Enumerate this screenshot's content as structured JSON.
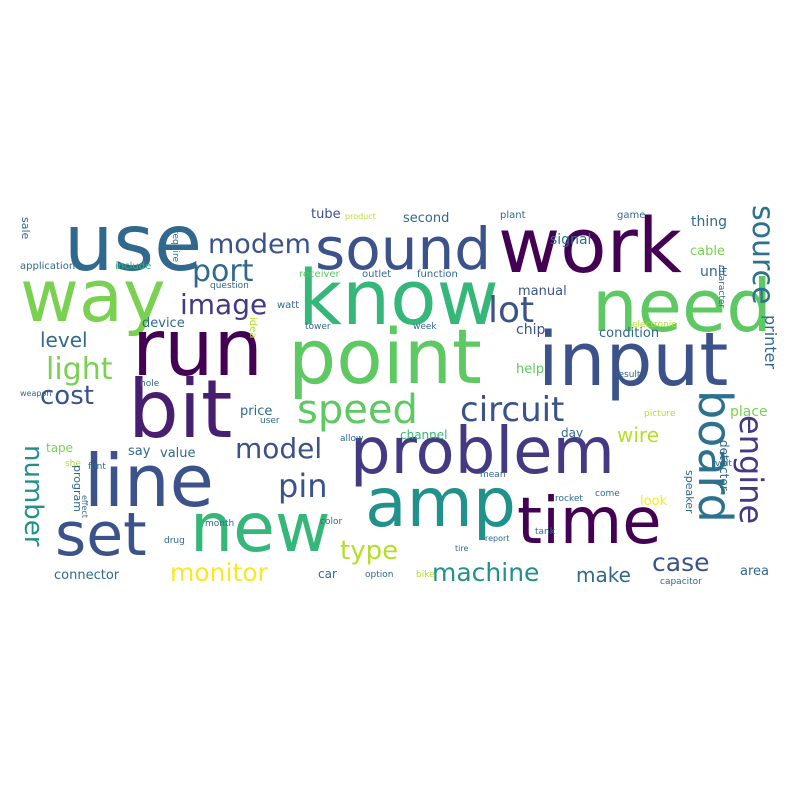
{
  "words": [
    {
      "text": "use",
      "color": "#31688e"
    },
    {
      "text": "way",
      "color": "#7ad151"
    },
    {
      "text": "sound",
      "color": "#3b528b"
    },
    {
      "text": "work",
      "color": "#440154"
    },
    {
      "text": "know",
      "color": "#35b779"
    },
    {
      "text": "need",
      "color": "#5ec962"
    },
    {
      "text": "run",
      "color": "#440154"
    },
    {
      "text": "point",
      "color": "#5ec962"
    },
    {
      "text": "input",
      "color": "#3b528b"
    },
    {
      "text": "bit",
      "color": "#481f70"
    },
    {
      "text": "problem",
      "color": "#443983"
    },
    {
      "text": "line",
      "color": "#3b528b"
    },
    {
      "text": "amp",
      "color": "#21918c"
    },
    {
      "text": "time",
      "color": "#440154"
    },
    {
      "text": "new",
      "color": "#35b779"
    },
    {
      "text": "set",
      "color": "#3b528b"
    },
    {
      "text": "speed",
      "color": "#5ec962"
    },
    {
      "text": "circuit",
      "color": "#3b528b"
    },
    {
      "text": "board",
      "color": "#2c728e"
    },
    {
      "text": "engine",
      "color": "#443983"
    },
    {
      "text": "source",
      "color": "#2c728e"
    },
    {
      "text": "modem",
      "color": "#3b528b"
    },
    {
      "text": "port",
      "color": "#31688e"
    },
    {
      "text": "image",
      "color": "#443983"
    },
    {
      "text": "lot",
      "color": "#3b528b"
    },
    {
      "text": "cost",
      "color": "#3b528b"
    },
    {
      "text": "light",
      "color": "#7ad151"
    },
    {
      "text": "level",
      "color": "#31688e"
    },
    {
      "text": "model",
      "color": "#3b528b"
    },
    {
      "text": "pin",
      "color": "#3b528b"
    },
    {
      "text": "type",
      "color": "#b5de2b"
    },
    {
      "text": "machine",
      "color": "#21918c"
    },
    {
      "text": "monitor",
      "color": "#fde725"
    },
    {
      "text": "case",
      "color": "#3b528b"
    },
    {
      "text": "make",
      "color": "#31688e"
    },
    {
      "text": "number",
      "color": "#21918c"
    },
    {
      "text": "wire",
      "color": "#b5de2b"
    },
    {
      "text": "printer",
      "color": "#31688e"
    },
    {
      "text": "tube",
      "color": "#3b528b"
    },
    {
      "text": "second",
      "color": "#31688e"
    },
    {
      "text": "signal",
      "color": "#2c728e"
    },
    {
      "text": "thing",
      "color": "#31688e"
    },
    {
      "text": "cable",
      "color": "#7ad151"
    },
    {
      "text": "unit",
      "color": "#31688e"
    },
    {
      "text": "manual",
      "color": "#3b528b"
    },
    {
      "text": "chip",
      "color": "#3b528b"
    },
    {
      "text": "help",
      "color": "#5ec962"
    },
    {
      "text": "connector",
      "color": "#31688e"
    },
    {
      "text": "area",
      "color": "#31688e"
    },
    {
      "text": "place",
      "color": "#7ad151"
    },
    {
      "text": "detector",
      "color": "#31688e"
    },
    {
      "text": "speaker",
      "color": "#31688e"
    },
    {
      "text": "condition",
      "color": "#31688e"
    },
    {
      "text": "device",
      "color": "#31688e"
    },
    {
      "text": "price",
      "color": "#31688e"
    },
    {
      "text": "value",
      "color": "#31688e"
    },
    {
      "text": "say",
      "color": "#31688e"
    },
    {
      "text": "tape",
      "color": "#7ad151"
    },
    {
      "text": "channel",
      "color": "#35b779"
    },
    {
      "text": "day",
      "color": "#31688e"
    },
    {
      "text": "look",
      "color": "#fde725"
    },
    {
      "text": "car",
      "color": "#31688e"
    },
    {
      "text": "program",
      "color": "#31688e"
    },
    {
      "text": "application",
      "color": "#31688e"
    },
    {
      "text": "include",
      "color": "#35b779"
    },
    {
      "text": "sale",
      "color": "#31688e"
    },
    {
      "text": "receiver",
      "color": "#5ec962"
    },
    {
      "text": "outlet",
      "color": "#31688e"
    },
    {
      "text": "function",
      "color": "#31688e"
    },
    {
      "text": "plant",
      "color": "#31688e"
    },
    {
      "text": "game",
      "color": "#31688e"
    },
    {
      "text": "require",
      "color": "#31688e"
    },
    {
      "text": "question",
      "color": "#31688e"
    },
    {
      "text": "watt",
      "color": "#31688e"
    },
    {
      "text": "idea",
      "color": "#b5de2b"
    },
    {
      "text": "tower",
      "color": "#31688e"
    },
    {
      "text": "week",
      "color": "#31688e"
    },
    {
      "text": "result",
      "color": "#31688e"
    },
    {
      "text": "electronic",
      "color": "#b5de2b"
    },
    {
      "text": "character",
      "color": "#31688e"
    },
    {
      "text": "volt",
      "color": "#31688e"
    },
    {
      "text": "hole",
      "color": "#31688e"
    },
    {
      "text": "font",
      "color": "#31688e"
    },
    {
      "text": "effect",
      "color": "#31688e"
    },
    {
      "text": "color",
      "color": "#31688e"
    },
    {
      "text": "drug",
      "color": "#31688e"
    },
    {
      "text": "month",
      "color": "#31688e"
    },
    {
      "text": "bike",
      "color": "#b5de2b"
    },
    {
      "text": "option",
      "color": "#31688e"
    },
    {
      "text": "capacitor",
      "color": "#31688e"
    },
    {
      "text": "rocket",
      "color": "#31688e"
    },
    {
      "text": "tank",
      "color": "#31688e"
    },
    {
      "text": "come",
      "color": "#31688e"
    },
    {
      "text": "allow",
      "color": "#31688e"
    },
    {
      "text": "user",
      "color": "#31688e"
    },
    {
      "text": "picture",
      "color": "#b5de2b"
    },
    {
      "text": "report",
      "color": "#31688e"
    },
    {
      "text": "tire",
      "color": "#31688e"
    },
    {
      "text": "product",
      "color": "#b5de2b"
    },
    {
      "text": "weapon",
      "color": "#31688e"
    },
    {
      "text": "mean",
      "color": "#31688e"
    },
    {
      "text": "she",
      "color": "#b5de2b"
    }
  ]
}
